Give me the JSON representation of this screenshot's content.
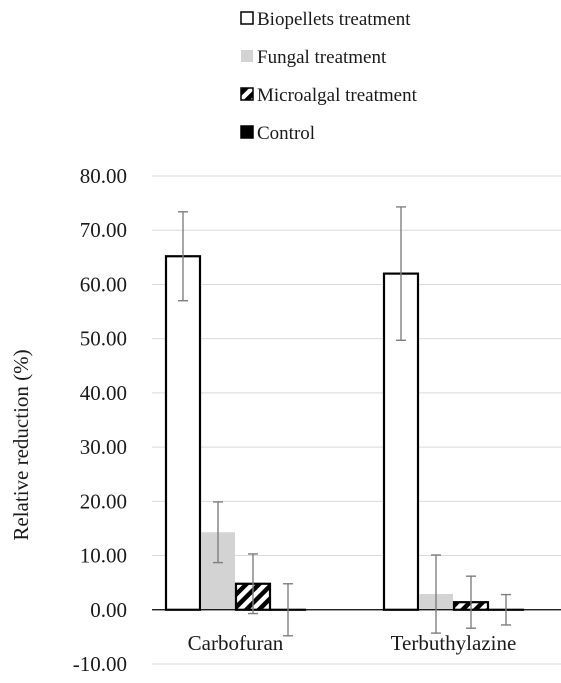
{
  "chart_data": {
    "type": "bar",
    "categories": [
      "Carbofuran",
      "Terbuthylazine"
    ],
    "series": [
      {
        "name": "Biopellets treatment",
        "values": [
          65.2,
          62.0
        ],
        "errors": [
          8.2,
          12.3
        ],
        "fill": "#ffffff",
        "stroke": "#000000",
        "pattern": "none"
      },
      {
        "name": "Fungal treatment",
        "values": [
          14.3,
          2.9
        ],
        "errors": [
          5.6,
          7.2
        ],
        "fill": "#d3d3d3",
        "stroke": "none",
        "pattern": "none"
      },
      {
        "name": "Microalgal treatment",
        "values": [
          4.8,
          1.4
        ],
        "errors": [
          5.5,
          4.8
        ],
        "fill": "#ffffff",
        "stroke": "#000000",
        "pattern": "diagonal-stripes"
      },
      {
        "name": "Control",
        "values": [
          0.0,
          0.0
        ],
        "errors": [
          4.8,
          2.8
        ],
        "fill": "#000000",
        "stroke": "#000000",
        "pattern": "none"
      }
    ],
    "title": "",
    "xlabel": "",
    "ylabel": "Relative reduction (%)",
    "ylim": [
      -10,
      80
    ],
    "yticks": [
      "80.00",
      "70.00",
      "60.00",
      "50.00",
      "40.00",
      "30.00",
      "20.00",
      "10.00",
      "0.00",
      "-10.00"
    ],
    "grid": "horizontal",
    "legend_position": "top",
    "error_bar_color": "#7f7f7f",
    "grid_color": "#d9d9d9"
  }
}
